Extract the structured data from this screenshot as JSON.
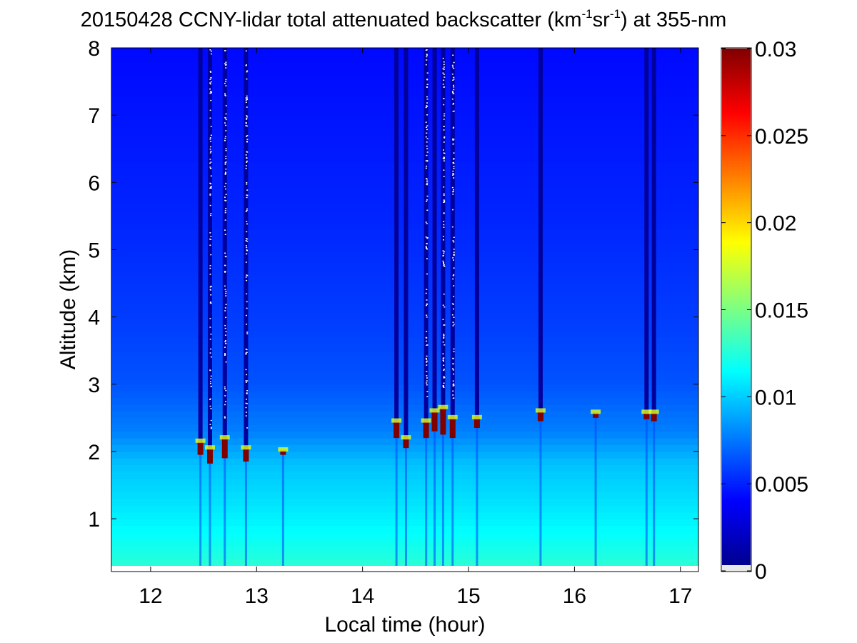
{
  "chart_data": {
    "type": "heatmap",
    "title": {
      "prefix": "20150428 CCNY-lidar total attenuated backscatter (km",
      "sup1": "-1",
      "mid": "sr",
      "sup2": "-1",
      "suffix": ") at 355-nm"
    },
    "xlabel": "Local time (hour)",
    "ylabel": "Altitude (km)",
    "xlim": [
      11.63,
      17.17
    ],
    "ylim": [
      0.3,
      8
    ],
    "xticks": [
      12,
      13,
      14,
      15,
      16,
      17
    ],
    "yticks": [
      1,
      2,
      3,
      4,
      5,
      6,
      7,
      8
    ],
    "colorbar": {
      "colormap": "jet",
      "range": [
        0,
        0.03
      ],
      "ticks": [
        0,
        0.005,
        0.01,
        0.015,
        0.02,
        0.025,
        0.03
      ],
      "tick_labels": [
        "0",
        "0.005",
        "0.01",
        "0.015",
        "0.02",
        "0.025",
        "0.03"
      ]
    },
    "background_profile": [
      {
        "alt": 0.3,
        "value": 0.0125
      },
      {
        "alt": 0.7,
        "value": 0.0115
      },
      {
        "alt": 1.2,
        "value": 0.0105
      },
      {
        "alt": 1.8,
        "value": 0.0095
      },
      {
        "alt": 2.3,
        "value": 0.0075
      },
      {
        "alt": 3.0,
        "value": 0.0062
      },
      {
        "alt": 4.0,
        "value": 0.0055
      },
      {
        "alt": 5.5,
        "value": 0.0048
      },
      {
        "alt": 8.0,
        "value": 0.004
      }
    ],
    "cloud_columns": [
      {
        "time": 12.47,
        "base": 1.95,
        "top": 2.15,
        "rain_above": true,
        "speckle": false
      },
      {
        "time": 12.56,
        "base": 1.82,
        "top": 2.05,
        "rain_above": true,
        "speckle": true
      },
      {
        "time": 12.7,
        "base": 1.9,
        "top": 2.2,
        "rain_above": true,
        "speckle": true
      },
      {
        "time": 12.9,
        "base": 1.85,
        "top": 2.05,
        "rain_above": true,
        "speckle": true
      },
      {
        "time": 13.25,
        "base": 1.95,
        "top": 2.02,
        "rain_above": false,
        "speckle": false
      },
      {
        "time": 14.32,
        "base": 2.2,
        "top": 2.45,
        "rain_above": true,
        "speckle": false
      },
      {
        "time": 14.41,
        "base": 2.05,
        "top": 2.2,
        "rain_above": true,
        "speckle": false
      },
      {
        "time": 14.6,
        "base": 2.2,
        "top": 2.45,
        "rain_above": true,
        "speckle": true
      },
      {
        "time": 14.68,
        "base": 2.3,
        "top": 2.6,
        "rain_above": true,
        "speckle": false
      },
      {
        "time": 14.76,
        "base": 2.25,
        "top": 2.65,
        "rain_above": true,
        "speckle": true
      },
      {
        "time": 14.85,
        "base": 2.2,
        "top": 2.5,
        "rain_above": true,
        "speckle": true
      },
      {
        "time": 15.08,
        "base": 2.35,
        "top": 2.5,
        "rain_above": true,
        "speckle": false
      },
      {
        "time": 15.68,
        "base": 2.45,
        "top": 2.6,
        "rain_above": true,
        "speckle": false
      },
      {
        "time": 16.2,
        "base": 2.5,
        "top": 2.58,
        "rain_above": false,
        "speckle": false
      },
      {
        "time": 16.68,
        "base": 2.48,
        "top": 2.58,
        "rain_above": true,
        "speckle": false
      },
      {
        "time": 16.75,
        "base": 2.45,
        "top": 2.58,
        "rain_above": true,
        "speckle": false
      }
    ]
  }
}
